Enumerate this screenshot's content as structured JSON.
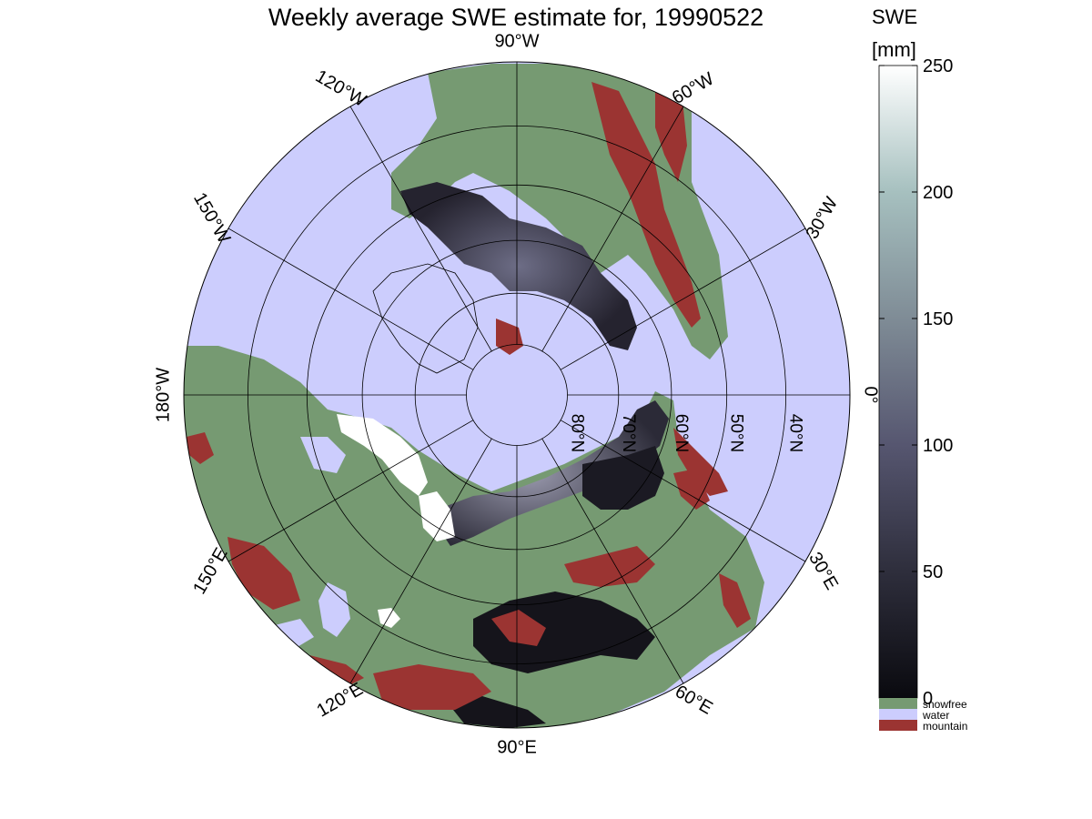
{
  "title": "Weekly average SWE estimate for, 19990522",
  "colorbar": {
    "title_line1": "SWE",
    "title_line2": "[mm]",
    "min": 0,
    "max": 250,
    "ticks": [
      {
        "value": 0,
        "label": "0"
      },
      {
        "value": 50,
        "label": "50"
      },
      {
        "value": 100,
        "label": "100"
      },
      {
        "value": 150,
        "label": "150"
      },
      {
        "value": 200,
        "label": "200"
      },
      {
        "value": 250,
        "label": "250"
      }
    ],
    "gradient": [
      "#0a0a0f",
      "#2e2e3c",
      "#565670",
      "#7f8c96",
      "#a6c0bf",
      "#ffffff"
    ]
  },
  "categories": [
    {
      "label": "snowfree",
      "color": "#769a72"
    },
    {
      "label": "water",
      "color": "#cccdfd"
    },
    {
      "label": "mountain",
      "color": "#9b3432"
    }
  ],
  "map": {
    "projection": "north-polar-stereographic",
    "center_lon_down": 90,
    "colors": {
      "water": "#cccdfd",
      "land": "#769a72",
      "mountain": "#9b3432",
      "snow_dark": "#25232f",
      "snow_mid": "#5a5a70",
      "snow_light": "#ffffff",
      "grid": "#000000"
    },
    "lon_labels": [
      {
        "lon": -90,
        "label": "90°W"
      },
      {
        "lon": -120,
        "label": "120°W"
      },
      {
        "lon": -150,
        "label": "150°W"
      },
      {
        "lon": 180,
        "label": "180°W"
      },
      {
        "lon": 150,
        "label": "150°E"
      },
      {
        "lon": 120,
        "label": "120°E"
      },
      {
        "lon": 90,
        "label": "90°E"
      },
      {
        "lon": 60,
        "label": "60°E"
      },
      {
        "lon": 30,
        "label": "30°E"
      },
      {
        "lon": 0,
        "label": "0°"
      },
      {
        "lon": -30,
        "label": "30°W"
      },
      {
        "lon": -60,
        "label": "60°W"
      }
    ],
    "lat_circles": [
      80,
      70,
      60,
      50,
      40
    ],
    "lat_labels": [
      {
        "lat": 80,
        "label": "80°N"
      },
      {
        "lat": 70,
        "label": "70°N"
      },
      {
        "lat": 60,
        "label": "60°N"
      },
      {
        "lat": 50,
        "label": "50°N"
      },
      {
        "lat": 40,
        "label": "40°N"
      }
    ]
  }
}
